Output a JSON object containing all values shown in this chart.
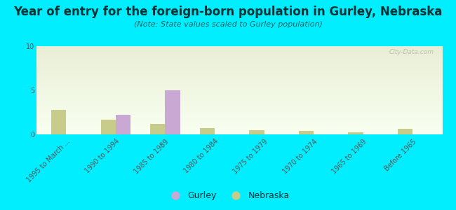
{
  "title": "Year of entry for the foreign-born population in Gurley, Nebraska",
  "subtitle": "(Note: State values scaled to Gurley population)",
  "categories": [
    "1995 to March ...",
    "1990 to 1994",
    "1985 to 1989",
    "1980 to 1984",
    "1975 to 1979",
    "1970 to 1974",
    "1965 to 1969",
    "Before 1965"
  ],
  "gurley_values": [
    0,
    2.2,
    5.0,
    0,
    0,
    0,
    0,
    0
  ],
  "nebraska_values": [
    2.8,
    1.7,
    1.2,
    0.7,
    0.5,
    0.4,
    0.2,
    0.6
  ],
  "gurley_color": "#c9a8d4",
  "nebraska_color": "#c8cc8a",
  "outer_bg": "#00eeff",
  "ylim": [
    0,
    10
  ],
  "yticks": [
    0,
    5,
    10
  ],
  "bar_width": 0.3,
  "title_fontsize": 12,
  "subtitle_fontsize": 8,
  "tick_fontsize": 7,
  "legend_fontsize": 9,
  "watermark": "City-Data.com",
  "title_color": "#003333",
  "subtitle_color": "#006666",
  "tick_color": "#555555"
}
